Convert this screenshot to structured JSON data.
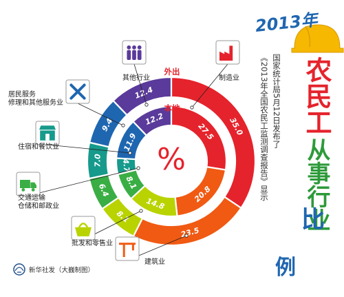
{
  "chart_data": {
    "type": "pie",
    "title_year": "2013年",
    "title_word": "农民工",
    "title_rest": "从事行业",
    "title_last": "比",
    "title_last2": "例",
    "subtitle_line1": "国家统计局5月12日发布了",
    "subtitle_line2": "《2013年全国农民工监测调查报告》显示",
    "center_symbol": "%",
    "ring_outer_label": "外出",
    "ring_inner_label": "本地",
    "categories": [
      "制造业",
      "建筑业",
      "批发和零售业",
      "交通运输仓储和邮政业",
      "住宿和餐饮业",
      "居民服务修理和其他服务业",
      "其他行业"
    ],
    "category_lines": [
      [
        "制造业"
      ],
      [
        "建筑业"
      ],
      [
        "批发和零售业"
      ],
      [
        "交通运输",
        "仓储和邮政业"
      ],
      [
        "住宿和餐饮业"
      ],
      [
        "居民服务",
        "修理和其他服务业"
      ],
      [
        "其他行业"
      ]
    ],
    "series": [
      {
        "name": "外出",
        "values": [
          35.0,
          23.5,
          8.1,
          6.4,
          7.0,
          9.4,
          12.4
        ],
        "labels": [
          "35.0",
          "23.5",
          "8.1",
          "6.4",
          "7.0",
          "9.4",
          "12.4"
        ]
      },
      {
        "name": "本地",
        "values": [
          27.5,
          20.8,
          14.8,
          8.1,
          4.7,
          11.9,
          12.2
        ],
        "labels": [
          "27.5",
          "20.8",
          "14.8",
          "8.1",
          "4.7",
          "11.9",
          "12.2"
        ]
      }
    ],
    "colors": [
      "#e5232c",
      "#f05a12",
      "#b9d300",
      "#3aae44",
      "#169a8c",
      "#1f66b0",
      "#5a3a9a"
    ],
    "icons": [
      "factory-icon",
      "crane-icon",
      "basket-icon",
      "truck-icon",
      "shop-icon",
      "tools-icon",
      "people-icon"
    ]
  },
  "credit": "新华社发（大巍制图）"
}
